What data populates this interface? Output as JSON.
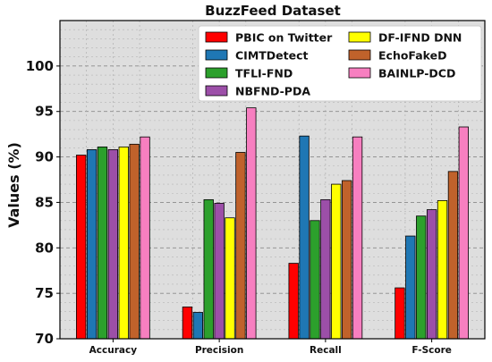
{
  "chart_data": {
    "type": "bar",
    "title": "BuzzFeed Dataset",
    "xlabel": "",
    "ylabel": "Values (%)",
    "ylim": [
      70,
      105
    ],
    "yticks": [
      70,
      75,
      80,
      85,
      90,
      95,
      100
    ],
    "grid": true,
    "legend_position": "top-right",
    "categories": [
      "Accuracy",
      "Precision",
      "Recall",
      "F-Score"
    ],
    "series": [
      {
        "name": "PBIC on Twitter",
        "color": "#ff0000",
        "values": [
          90.2,
          73.5,
          78.3,
          75.6
        ]
      },
      {
        "name": "CIMTDetect",
        "color": "#1f77b4",
        "values": [
          90.8,
          72.9,
          92.3,
          81.3
        ]
      },
      {
        "name": "TFLI-FND",
        "color": "#2ca02c",
        "values": [
          91.1,
          85.3,
          83.0,
          83.5
        ]
      },
      {
        "name": "NBFND-PDA",
        "color": "#9c4fa8",
        "values": [
          90.8,
          84.9,
          85.3,
          84.2
        ]
      },
      {
        "name": "DF-IFND DNN",
        "color": "#ffff00",
        "values": [
          91.1,
          83.3,
          87.0,
          85.2
        ]
      },
      {
        "name": "EchoFakeD",
        "color": "#c0622b",
        "values": [
          91.4,
          90.5,
          87.4,
          88.4
        ]
      },
      {
        "name": "BAINLP-DCD",
        "color": "#f77fc0",
        "values": [
          92.2,
          95.4,
          92.2,
          93.3
        ]
      }
    ]
  }
}
